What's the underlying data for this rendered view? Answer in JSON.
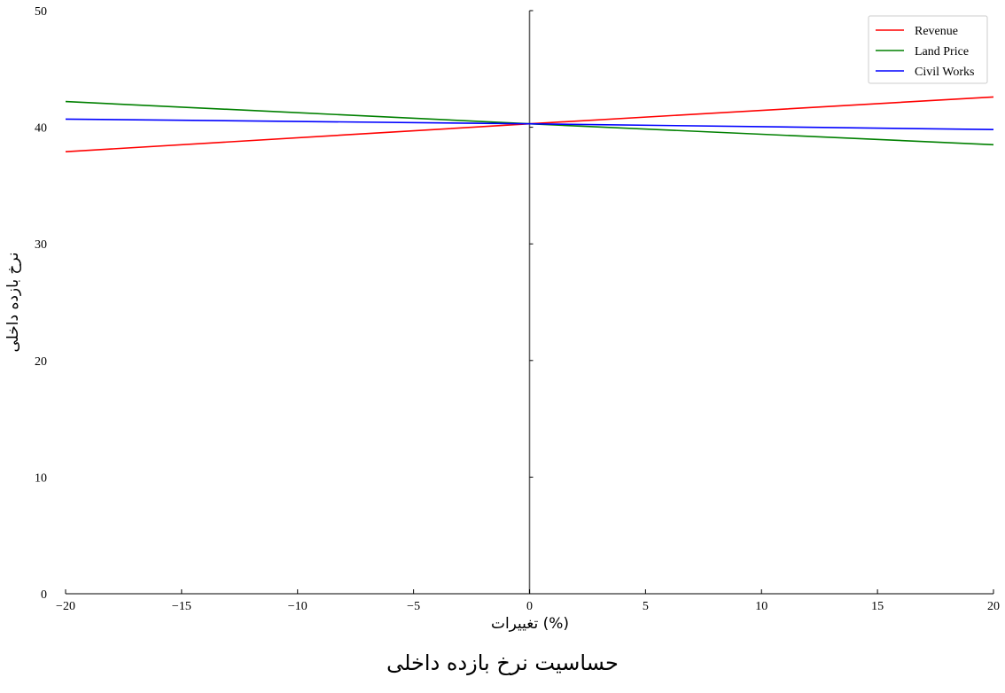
{
  "chart_data": {
    "type": "line",
    "title": "",
    "caption": "حساسیت نرخ بازده داخلی",
    "xlabel": "(%) تغییرات",
    "ylabel": "نرخ بازده داخلی",
    "xlim": [
      -20,
      20
    ],
    "ylim": [
      0,
      50
    ],
    "xticks": [
      -20,
      -15,
      -10,
      -5,
      0,
      5,
      10,
      15,
      20
    ],
    "xtick_labels": [
      "−20",
      "−15",
      "−10",
      "−5",
      "0",
      "5",
      "10",
      "15",
      "20"
    ],
    "yticks": [
      0,
      10,
      20,
      30,
      40,
      50
    ],
    "ytick_labels": [
      "0",
      "10",
      "20",
      "30",
      "40",
      "50"
    ],
    "grid": false,
    "vertical_reference_line_x": 0,
    "legend_position": "top-right",
    "series": [
      {
        "name": "Revenue",
        "color": "#ff0000",
        "x": [
          -20,
          0,
          20
        ],
        "y": [
          37.9,
          40.3,
          42.6
        ]
      },
      {
        "name": "Land Price",
        "color": "#008000",
        "x": [
          -20,
          0,
          20
        ],
        "y": [
          42.2,
          40.3,
          38.5
        ]
      },
      {
        "name": "Civil Works",
        "color": "#0000ff",
        "x": [
          -20,
          0,
          20
        ],
        "y": [
          40.7,
          40.3,
          39.8
        ]
      }
    ]
  }
}
